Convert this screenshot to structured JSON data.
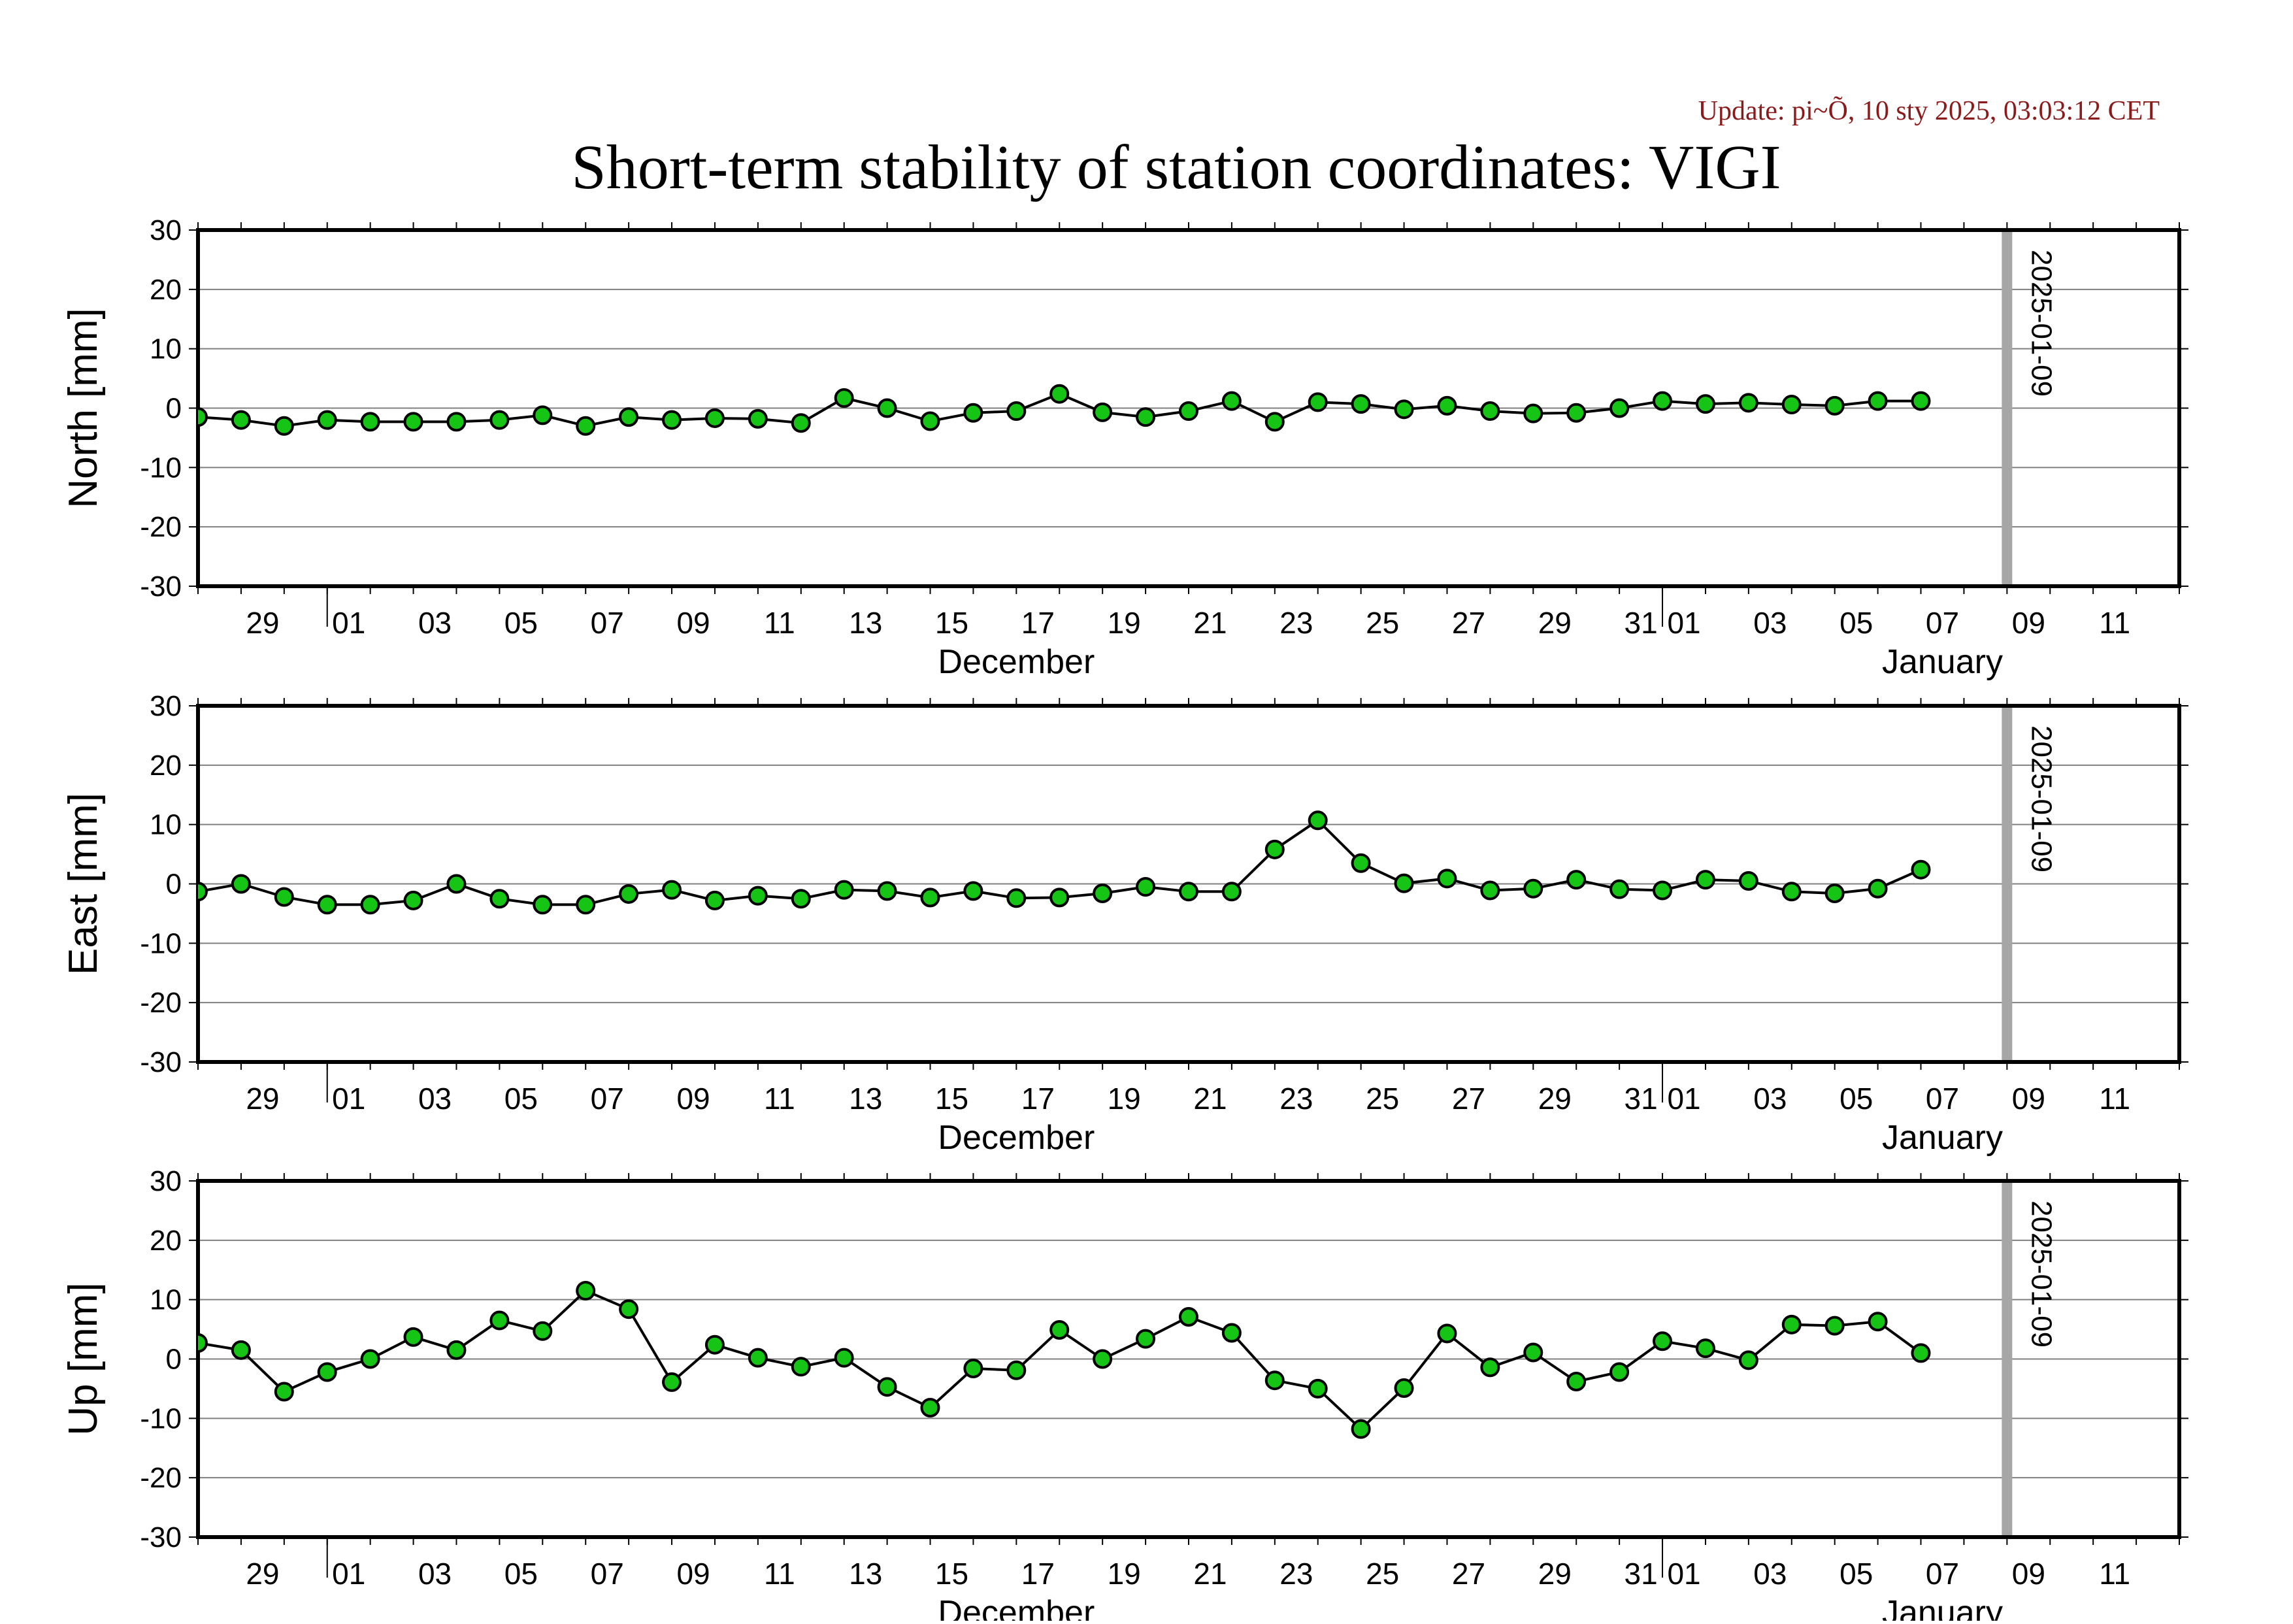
{
  "update_text": "Update: pi~Õ, 10 sty 2025, 03:03:12 CET",
  "title": "Short-term stability of station coordinates: VIGI",
  "colors": {
    "marker_fill": "#16c416",
    "marker_edge": "#000000",
    "line": "#000000",
    "grid": "#808080",
    "date_band": "#a6a6a6",
    "update_text": "#8b1a1a"
  },
  "chart_data": [
    {
      "type": "line",
      "ylabel": "North [mm]",
      "ylim": [
        -30,
        30
      ],
      "yticks": [
        30,
        20,
        10,
        0,
        -10,
        -20,
        -30
      ],
      "xlim": [
        "2024-11-28",
        "2025-01-13"
      ],
      "xtick_labels": [
        "29",
        "01",
        "03",
        "05",
        "07",
        "09",
        "11",
        "13",
        "15",
        "17",
        "19",
        "21",
        "23",
        "25",
        "27",
        "29",
        "31",
        "01",
        "03",
        "05",
        "07",
        "09",
        "11"
      ],
      "month_labels": [
        "December",
        "January"
      ],
      "marker_date": "2025-01-09",
      "marker_label": "2025-01-09",
      "grid": true,
      "series": [
        {
          "x": [
            "2024-11-28",
            "2024-11-29",
            "2024-11-30",
            "2024-12-01",
            "2024-12-02",
            "2024-12-03",
            "2024-12-04",
            "2024-12-05",
            "2024-12-06",
            "2024-12-07",
            "2024-12-08",
            "2024-12-09",
            "2024-12-10",
            "2024-12-11",
            "2024-12-12",
            "2024-12-13",
            "2024-12-14",
            "2024-12-15",
            "2024-12-16",
            "2024-12-17",
            "2024-12-18",
            "2024-12-19",
            "2024-12-20",
            "2024-12-21",
            "2024-12-22",
            "2024-12-23",
            "2024-12-24",
            "2024-12-25",
            "2024-12-26",
            "2024-12-27",
            "2024-12-28",
            "2024-12-29",
            "2024-12-30",
            "2024-12-31",
            "2025-01-01",
            "2025-01-02",
            "2025-01-03",
            "2025-01-04",
            "2025-01-05",
            "2025-01-06",
            "2025-01-07"
          ],
          "y": [
            -1.5,
            -2,
            -3,
            -2,
            -2.3,
            -2.3,
            -2.3,
            -2,
            -1.2,
            -3,
            -1.5,
            -2,
            -1.7,
            -1.8,
            -2.5,
            1.7,
            0,
            -2.2,
            -0.8,
            -0.5,
            2.4,
            -0.7,
            -1.5,
            -0.5,
            1.2,
            -2.3,
            1,
            0.7,
            -0.2,
            0.4,
            -0.5,
            -0.9,
            -0.8,
            0,
            1.2,
            0.7,
            0.9,
            0.6,
            0.4,
            1.2,
            1.2
          ]
        }
      ]
    },
    {
      "type": "line",
      "ylabel": "East [mm]",
      "ylim": [
        -30,
        30
      ],
      "yticks": [
        30,
        20,
        10,
        0,
        -10,
        -20,
        -30
      ],
      "xlim": [
        "2024-11-28",
        "2025-01-13"
      ],
      "xtick_labels": [
        "29",
        "01",
        "03",
        "05",
        "07",
        "09",
        "11",
        "13",
        "15",
        "17",
        "19",
        "21",
        "23",
        "25",
        "27",
        "29",
        "31",
        "01",
        "03",
        "05",
        "07",
        "09",
        "11"
      ],
      "month_labels": [
        "December",
        "January"
      ],
      "marker_date": "2025-01-09",
      "marker_label": "2025-01-09",
      "grid": true,
      "series": [
        {
          "x": [
            "2024-11-28",
            "2024-11-29",
            "2024-11-30",
            "2024-12-01",
            "2024-12-02",
            "2024-12-03",
            "2024-12-04",
            "2024-12-05",
            "2024-12-06",
            "2024-12-07",
            "2024-12-08",
            "2024-12-09",
            "2024-12-10",
            "2024-12-11",
            "2024-12-12",
            "2024-12-13",
            "2024-12-14",
            "2024-12-15",
            "2024-12-16",
            "2024-12-17",
            "2024-12-18",
            "2024-12-19",
            "2024-12-20",
            "2024-12-21",
            "2024-12-22",
            "2024-12-23",
            "2024-12-24",
            "2024-12-25",
            "2024-12-26",
            "2024-12-27",
            "2024-12-28",
            "2024-12-29",
            "2024-12-30",
            "2024-12-31",
            "2025-01-01",
            "2025-01-02",
            "2025-01-03",
            "2025-01-04",
            "2025-01-05",
            "2025-01-06",
            "2025-01-07"
          ],
          "y": [
            -1.3,
            0,
            -2.2,
            -3.5,
            -3.5,
            -2.8,
            0,
            -2.5,
            -3.5,
            -3.5,
            -1.7,
            -1,
            -2.8,
            -2,
            -2.5,
            -1,
            -1.2,
            -2.3,
            -1.2,
            -2.4,
            -2.3,
            -1.6,
            -0.5,
            -1.3,
            -1.3,
            5.8,
            10.7,
            3.5,
            0.1,
            0.9,
            -1.1,
            -0.8,
            0.7,
            -0.9,
            -1.1,
            0.7,
            0.5,
            -1.3,
            -1.6,
            -0.8,
            2.4
          ]
        }
      ]
    },
    {
      "type": "line",
      "ylabel": "Up [mm]",
      "ylim": [
        -30,
        30
      ],
      "yticks": [
        30,
        20,
        10,
        0,
        -10,
        -20,
        -30
      ],
      "xlim": [
        "2024-11-28",
        "2025-01-13"
      ],
      "xtick_labels": [
        "29",
        "01",
        "03",
        "05",
        "07",
        "09",
        "11",
        "13",
        "15",
        "17",
        "19",
        "21",
        "23",
        "25",
        "27",
        "29",
        "31",
        "01",
        "03",
        "05",
        "07",
        "09",
        "11"
      ],
      "month_labels": [
        "December",
        "January"
      ],
      "marker_date": "2025-01-09",
      "marker_label": "2025-01-09",
      "grid": true,
      "series": [
        {
          "x": [
            "2024-11-28",
            "2024-11-29",
            "2024-11-30",
            "2024-12-01",
            "2024-12-02",
            "2024-12-03",
            "2024-12-04",
            "2024-12-05",
            "2024-12-06",
            "2024-12-07",
            "2024-12-08",
            "2024-12-09",
            "2024-12-10",
            "2024-12-11",
            "2024-12-12",
            "2024-12-13",
            "2024-12-14",
            "2024-12-15",
            "2024-12-16",
            "2024-12-17",
            "2024-12-18",
            "2024-12-19",
            "2024-12-20",
            "2024-12-21",
            "2024-12-22",
            "2024-12-23",
            "2024-12-24",
            "2024-12-25",
            "2024-12-26",
            "2024-12-27",
            "2024-12-28",
            "2024-12-29",
            "2024-12-30",
            "2024-12-31",
            "2025-01-01",
            "2025-01-02",
            "2025-01-03",
            "2025-01-04",
            "2025-01-05",
            "2025-01-06",
            "2025-01-07"
          ],
          "y": [
            2.7,
            1.5,
            -5.5,
            -2.2,
            0,
            3.7,
            1.5,
            6.5,
            4.7,
            11.5,
            8.4,
            -3.9,
            2.4,
            0.2,
            -1.3,
            0.2,
            -4.7,
            -8.2,
            -1.6,
            -1.9,
            4.9,
            0,
            3.4,
            7.1,
            4.4,
            -3.6,
            -5,
            -11.8,
            -4.9,
            4.3,
            -1.4,
            1.1,
            -3.8,
            -2.2,
            3,
            1.8,
            -0.2,
            5.8,
            5.6,
            6.3,
            1
          ]
        }
      ]
    }
  ]
}
